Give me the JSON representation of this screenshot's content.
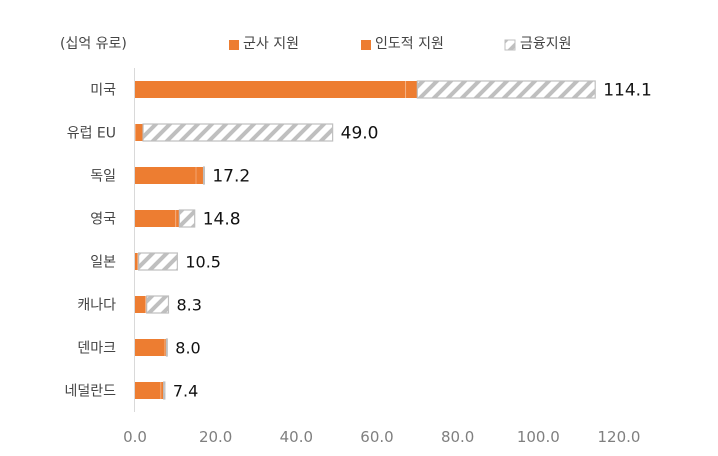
{
  "chart_data": {
    "type": "bar",
    "orientation": "horizontal",
    "stacked": true,
    "unit_label": "(십억 유로)",
    "categories": [
      "미국",
      "유럽 EU",
      "독일",
      "영국",
      "일본",
      "캐나다",
      "덴마크",
      "네덜란드"
    ],
    "series": [
      {
        "name": "군사 지원",
        "values": [
          67.0,
          0.0,
          15.0,
          10.0,
          0.5,
          2.5,
          7.3,
          6.3
        ],
        "color": "#ED7D31",
        "pattern": "solid"
      },
      {
        "name": "인도적 지원",
        "values": [
          3.0,
          2.0,
          2.0,
          1.0,
          0.4,
          0.4,
          0.5,
          0.8
        ],
        "color": "#ED7D31",
        "pattern": "solid"
      },
      {
        "name": "금융지원",
        "values": [
          44.1,
          47.0,
          0.2,
          3.8,
          9.6,
          5.4,
          0.2,
          0.3
        ],
        "color": "#BFBFBF",
        "pattern": "hatched"
      }
    ],
    "totals": [
      "114.1",
      "49.0",
      "17.2",
      "14.8",
      "10.5",
      "8.3",
      "8.0",
      "7.4"
    ],
    "xlim": [
      0,
      120
    ],
    "xticks": [
      "0.0",
      "20.0",
      "40.0",
      "60.0",
      "80.0",
      "100.0",
      "120.0"
    ],
    "grid": false,
    "legend_position": "top"
  }
}
